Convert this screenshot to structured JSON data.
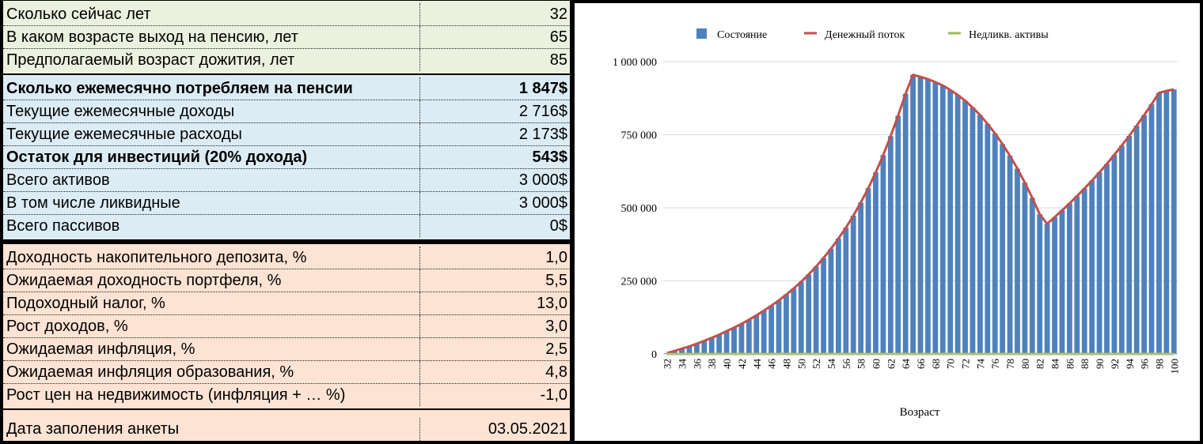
{
  "table": {
    "group1": [
      {
        "label": "Сколько сейчас лет",
        "value": "32"
      },
      {
        "label": "В каком возрасте выход на пенсию, лет",
        "value": "65"
      },
      {
        "label": "Предполагаемый возраст дожития, лет",
        "value": "85"
      }
    ],
    "group2": [
      {
        "label": "Сколько ежемесячно потребляем на пенсии",
        "value": "1 847$",
        "bold": true
      },
      {
        "label": "Текущие ежемесячные доходы",
        "value": "2 716$"
      },
      {
        "label": "Текущие ежемесячные расходы",
        "value": "2 173$"
      },
      {
        "label": "Остаток для инвестиций (20% дохода)",
        "value": "543$",
        "bold": true
      },
      {
        "label": "Всего активов",
        "value": "3 000$"
      },
      {
        "label": "В том числе ликвидные",
        "value": "3 000$"
      },
      {
        "label": "Всего пассивов",
        "value": "0$"
      }
    ],
    "group3": [
      {
        "label": "Доходность накопительного депозита, %",
        "value": "1,0"
      },
      {
        "label": "Ожидаемая доходность портфеля, %",
        "value": "5,5"
      },
      {
        "label": "Подоходный налог, %",
        "value": "13,0"
      },
      {
        "label": "Рост доходов, %",
        "value": "3,0"
      },
      {
        "label": "Ожидаемая инфляция,  %",
        "value": "2,5"
      },
      {
        "label": "Ожидаемая инфляция образования,  %",
        "value": "4,8"
      },
      {
        "label": "Рост цен на недвижимость (инфляция + … %)",
        "value": "-1,0"
      }
    ],
    "footer": {
      "label": "Дата заполения анкеты",
      "value": "03.05.2021"
    }
  },
  "colors": {
    "bars": "#4f81bd",
    "line": "#c0504d",
    "illiquid": "#9bbb59"
  },
  "chart_data": {
    "type": "bar",
    "xlabel": "Возраст",
    "ylabel": "",
    "ylim": [
      0,
      1000000
    ],
    "yticks": [
      0,
      250000,
      500000,
      750000,
      1000000
    ],
    "ytick_labels": [
      "0",
      "250 000",
      "500 000",
      "750 000",
      "1 000 000"
    ],
    "legend_position": "top",
    "grid": true,
    "x": [
      32,
      33,
      34,
      35,
      36,
      37,
      38,
      39,
      40,
      41,
      42,
      43,
      44,
      45,
      46,
      47,
      48,
      49,
      50,
      51,
      52,
      53,
      54,
      55,
      56,
      57,
      58,
      59,
      60,
      61,
      62,
      63,
      64,
      65,
      66,
      67,
      68,
      69,
      70,
      71,
      72,
      73,
      74,
      75,
      76,
      77,
      78,
      79,
      80,
      81,
      82,
      83,
      84,
      85,
      86,
      87,
      88,
      89,
      90,
      91,
      92,
      93,
      94,
      95,
      96,
      97,
      98,
      99,
      100
    ],
    "xtick_labels": [
      "32",
      "34",
      "36",
      "38",
      "40",
      "42",
      "44",
      "46",
      "48",
      "50",
      "52",
      "54",
      "56",
      "58",
      "60",
      "62",
      "64",
      "66",
      "68",
      "70",
      "72",
      "74",
      "76",
      "78",
      "80",
      "82",
      "84",
      "86",
      "88",
      "90",
      "92",
      "94",
      "96",
      "98",
      "100"
    ],
    "series": [
      {
        "name": "Состояние",
        "kind": "bar",
        "values": [
          3000,
          10000,
          18000,
          26000,
          35000,
          45000,
          55000,
          66000,
          78000,
          90000,
          103000,
          117000,
          132000,
          148000,
          165000,
          183000,
          203000,
          224000,
          247000,
          272000,
          299000,
          328000,
          360000,
          395000,
          432000,
          473000,
          518000,
          567000,
          621000,
          680000,
          745000,
          815000,
          890000,
          955000,
          948000,
          940000,
          930000,
          918000,
          903000,
          886000,
          866000,
          843000,
          817000,
          787000,
          754000,
          718000,
          678000,
          634000,
          586000,
          534000,
          478000,
          445000,
          468000,
          491000,
          515000,
          540000,
          566000,
          593000,
          621000,
          650000,
          681000,
          713000,
          746000,
          781000,
          817000,
          854000,
          893000,
          900000,
          905000
        ]
      },
      {
        "name": "Денежный поток",
        "kind": "line",
        "values": [
          3000,
          10000,
          18000,
          26000,
          35000,
          45000,
          55000,
          66000,
          78000,
          90000,
          103000,
          117000,
          132000,
          148000,
          165000,
          183000,
          203000,
          224000,
          247000,
          272000,
          299000,
          328000,
          360000,
          395000,
          432000,
          473000,
          518000,
          567000,
          621000,
          680000,
          745000,
          815000,
          890000,
          955000,
          948000,
          940000,
          930000,
          918000,
          903000,
          886000,
          866000,
          843000,
          817000,
          787000,
          754000,
          718000,
          678000,
          634000,
          586000,
          534000,
          478000,
          445000,
          468000,
          491000,
          515000,
          540000,
          566000,
          593000,
          621000,
          650000,
          681000,
          713000,
          746000,
          781000,
          817000,
          854000,
          893000,
          900000,
          905000
        ]
      },
      {
        "name": "Недликв. активы",
        "kind": "line",
        "values": [
          0,
          0,
          0,
          0,
          0,
          0,
          0,
          0,
          0,
          0,
          0,
          0,
          0,
          0,
          0,
          0,
          0,
          0,
          0,
          0,
          0,
          0,
          0,
          0,
          0,
          0,
          0,
          0,
          0,
          0,
          0,
          0,
          0,
          0,
          0,
          0,
          0,
          0,
          0,
          0,
          0,
          0,
          0,
          0,
          0,
          0,
          0,
          0,
          0,
          0,
          0,
          0,
          0,
          0,
          0,
          0,
          0,
          0,
          0,
          0,
          0,
          0,
          0,
          0,
          0,
          0,
          0,
          0,
          0
        ]
      }
    ]
  }
}
